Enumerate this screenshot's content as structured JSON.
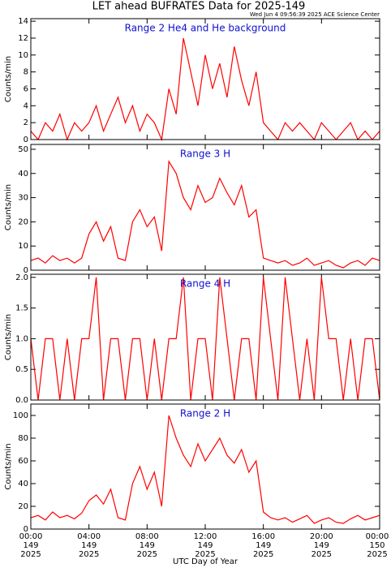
{
  "title": "LET ahead BUFRATES Data for 2025-149",
  "timestamp": "Wed Jun  4 09:56:39 2025 ACE Science Center",
  "xlabel": "UTC Day of Year",
  "xlim": [
    0,
    24
  ],
  "xticks": [
    {
      "value": 0,
      "label": [
        "00:00",
        "149",
        "2025"
      ]
    },
    {
      "value": 4,
      "label": [
        "04:00",
        "149",
        "2025"
      ]
    },
    {
      "value": 8,
      "label": [
        "08:00",
        "149",
        "2025"
      ]
    },
    {
      "value": 12,
      "label": [
        "12:00",
        "149",
        "2025"
      ]
    },
    {
      "value": 16,
      "label": [
        "16:00",
        "149",
        "2025"
      ]
    },
    {
      "value": 20,
      "label": [
        "20:00",
        "149",
        "2025"
      ]
    },
    {
      "value": 24,
      "label": [
        "00:00",
        "150",
        "2025"
      ]
    }
  ],
  "x": [
    0,
    0.5,
    1,
    1.5,
    2,
    2.5,
    3,
    3.5,
    4,
    4.5,
    5,
    5.5,
    6,
    6.5,
    7,
    7.5,
    8,
    8.5,
    9,
    9.5,
    10,
    10.5,
    11,
    11.5,
    12,
    12.5,
    13,
    13.5,
    14,
    14.5,
    15,
    15.5,
    16,
    16.5,
    17,
    17.5,
    18,
    18.5,
    19,
    19.5,
    20,
    20.5,
    21,
    21.5,
    22,
    22.5,
    23,
    23.5,
    24
  ],
  "chart_data": [
    {
      "type": "line",
      "title": "Range 2 He4 and He background",
      "ylabel": "Counts/min",
      "color": "#ff0000",
      "ylim": [
        0,
        14.3
      ],
      "yticks": [
        0,
        2,
        4,
        6,
        8,
        10,
        12,
        14
      ],
      "values": [
        1,
        0,
        2,
        1,
        3,
        0,
        2,
        1,
        2,
        4,
        1,
        3,
        5,
        2,
        4,
        1,
        3,
        2,
        0,
        6,
        3,
        12,
        8,
        4,
        10,
        6,
        9,
        5,
        11,
        7,
        4,
        8,
        2,
        1,
        0,
        2,
        1,
        2,
        1,
        0,
        2,
        1,
        0,
        1,
        2,
        0,
        1,
        0,
        1
      ]
    },
    {
      "type": "line",
      "title": "Range 3 H",
      "ylabel": "Counts/min",
      "color": "#ff0000",
      "ylim": [
        0,
        52
      ],
      "yticks": [
        0,
        10,
        20,
        30,
        40,
        50
      ],
      "values": [
        4,
        5,
        3,
        6,
        4,
        5,
        3,
        5,
        15,
        20,
        12,
        18,
        5,
        4,
        20,
        25,
        18,
        22,
        8,
        45,
        40,
        30,
        25,
        35,
        28,
        30,
        38,
        32,
        27,
        35,
        22,
        25,
        5,
        4,
        3,
        4,
        2,
        3,
        5,
        2,
        3,
        4,
        2,
        1,
        3,
        4,
        2,
        5,
        4
      ]
    },
    {
      "type": "line",
      "title": "Range 4 H",
      "ylabel": "Counts/min",
      "color": "#ff0000",
      "ylim": [
        0,
        2.05
      ],
      "yticks": [
        {
          "value": 0,
          "label": "0.0"
        },
        {
          "value": 0.5,
          "label": "0.5"
        },
        {
          "value": 1,
          "label": "1.0"
        },
        {
          "value": 1.5,
          "label": "1.5"
        },
        {
          "value": 2,
          "label": "2.0"
        }
      ],
      "values": [
        1,
        0,
        1,
        1,
        0,
        1,
        0,
        1,
        1,
        2,
        0,
        1,
        1,
        0,
        1,
        1,
        0,
        1,
        0,
        1,
        1,
        2,
        0,
        1,
        1,
        0,
        2,
        1,
        0,
        1,
        1,
        0,
        2,
        1,
        0,
        2,
        1,
        0,
        1,
        0,
        2,
        1,
        1,
        0,
        1,
        0,
        1,
        1,
        0
      ]
    },
    {
      "type": "line",
      "title": "Range 2 H",
      "ylabel": "Counts/min",
      "color": "#ff0000",
      "ylim": [
        0,
        110
      ],
      "yticks": [
        0,
        20,
        40,
        60,
        80,
        100
      ],
      "values": [
        10,
        12,
        8,
        15,
        10,
        12,
        9,
        14,
        25,
        30,
        22,
        35,
        10,
        8,
        40,
        55,
        35,
        50,
        20,
        100,
        80,
        65,
        55,
        75,
        60,
        70,
        80,
        65,
        58,
        70,
        50,
        60,
        15,
        10,
        8,
        10,
        6,
        9,
        12,
        5,
        8,
        10,
        6,
        5,
        9,
        12,
        8,
        10,
        12
      ]
    }
  ]
}
